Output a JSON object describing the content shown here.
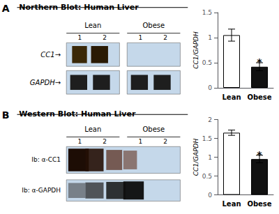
{
  "chart_data": [
    {
      "type": "bar",
      "title": "Northern Blot: Human Liver",
      "categories": [
        "Lean",
        "Obese"
      ],
      "values": [
        1.05,
        0.42
      ],
      "errors": [
        0.12,
        0.08
      ],
      "colors": [
        "#ffffff",
        "#111111"
      ],
      "ylabel": "CC1/GAPDH",
      "ylim": [
        0,
        1.5
      ],
      "yticks": [
        0,
        0.5,
        1,
        1.5
      ],
      "grid": false,
      "annotations": [
        "A",
        "Lean",
        "Obese",
        "1",
        "2",
        "1",
        "2",
        "CC1→",
        "GAPDH→",
        {
          "text": "*",
          "x": "Obese"
        }
      ]
    },
    {
      "type": "bar",
      "title": "Western Blot: Human Liver",
      "categories": [
        "Lean",
        "Obese"
      ],
      "values": [
        1.65,
        0.95
      ],
      "errors": [
        0.07,
        0.1
      ],
      "colors": [
        "#ffffff",
        "#111111"
      ],
      "ylabel": "CC1/GAPDH",
      "ylim": [
        0,
        2.0
      ],
      "yticks": [
        0,
        0.5,
        1,
        1.5,
        2
      ],
      "grid": false,
      "annotations": [
        "B",
        "Lean",
        "Obese",
        "1",
        "2",
        "1",
        "2",
        "Ib: α-CC1",
        "Ib: α-GAPDH",
        {
          "text": "*",
          "x": "Obese"
        }
      ]
    }
  ]
}
